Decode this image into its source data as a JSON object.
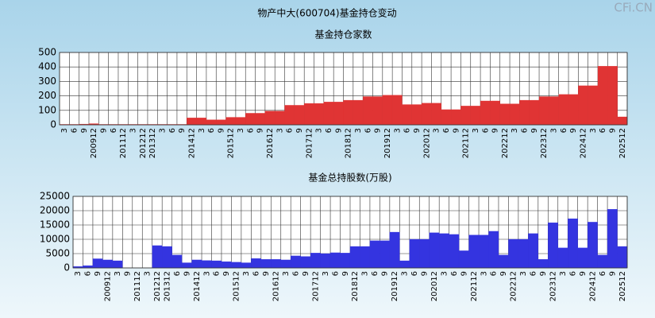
{
  "title": "物产中大(600704)基金持仓变动",
  "watermark": "CFi.CN",
  "chart_data": [
    {
      "type": "bar",
      "title": "基金持仓家数",
      "color": "#e03434",
      "categories": [
        "3",
        "6",
        "9",
        "200912",
        "9",
        "6",
        "201112",
        "3",
        "201212",
        "201312",
        "3",
        "6",
        "9",
        "201412",
        "3",
        "6",
        "9",
        "201512",
        "3",
        "6",
        "9",
        "201612",
        "3",
        "6",
        "9",
        "201712",
        "3",
        "6",
        "9",
        "201812",
        "3",
        "6",
        "9",
        "201912",
        "3",
        "6",
        "9",
        "202012",
        "3",
        "6",
        "9",
        "202112",
        "3",
        "6",
        "9",
        "202212",
        "3",
        "6",
        "9",
        "202312",
        "3",
        "6",
        "9",
        "202412",
        "3",
        "6",
        "9",
        "202512"
      ],
      "values": [
        3,
        3,
        5,
        8,
        3,
        3,
        3,
        3,
        3,
        3,
        3,
        3,
        3,
        48,
        48,
        35,
        35,
        52,
        52,
        80,
        80,
        95,
        95,
        135,
        135,
        148,
        148,
        158,
        158,
        170,
        170,
        195,
        195,
        205,
        205,
        140,
        140,
        150,
        150,
        105,
        105,
        130,
        130,
        165,
        165,
        145,
        145,
        170,
        170,
        195,
        195,
        210,
        210,
        270,
        270,
        405,
        405,
        55
      ],
      "ylim": [
        0,
        500
      ],
      "yticks": [
        0,
        100,
        200,
        300,
        400,
        500
      ],
      "grid": true
    },
    {
      "type": "bar",
      "title": "基金总持股数(万股)",
      "color": "#3434e0",
      "categories": [
        "3",
        "6",
        "9",
        "200912",
        "3",
        "9",
        "201112",
        "3",
        "201212",
        "201312",
        "6",
        "9",
        "201412",
        "3",
        "6",
        "9",
        "201512",
        "3",
        "6",
        "9",
        "201612",
        "3",
        "6",
        "9",
        "201712",
        "3",
        "6",
        "9",
        "201812",
        "3",
        "6",
        "9",
        "201912",
        "3",
        "6",
        "9",
        "202012",
        "3",
        "6",
        "9",
        "202112",
        "3",
        "6",
        "9",
        "202212",
        "3",
        "6",
        "9",
        "202312",
        "3",
        "6",
        "9",
        "202412",
        "6",
        "9",
        "202512"
      ],
      "values": [
        500,
        800,
        3200,
        2800,
        2500,
        0,
        0,
        0,
        7800,
        7500,
        4500,
        1800,
        2800,
        2600,
        2500,
        2200,
        2000,
        1800,
        3300,
        3000,
        3000,
        2800,
        4200,
        4000,
        5200,
        5000,
        5300,
        5200,
        7500,
        7500,
        9500,
        9500,
        12500,
        2500,
        10000,
        10000,
        12300,
        12000,
        11700,
        6000,
        11500,
        11500,
        12800,
        4500,
        10000,
        10000,
        12000,
        3000,
        15800,
        7000,
        17200,
        7000,
        16000,
        4500,
        20500,
        7500
      ],
      "ylim": [
        0,
        25000
      ],
      "yticks": [
        0,
        5000,
        10000,
        15000,
        20000,
        25000
      ],
      "grid": true
    }
  ]
}
